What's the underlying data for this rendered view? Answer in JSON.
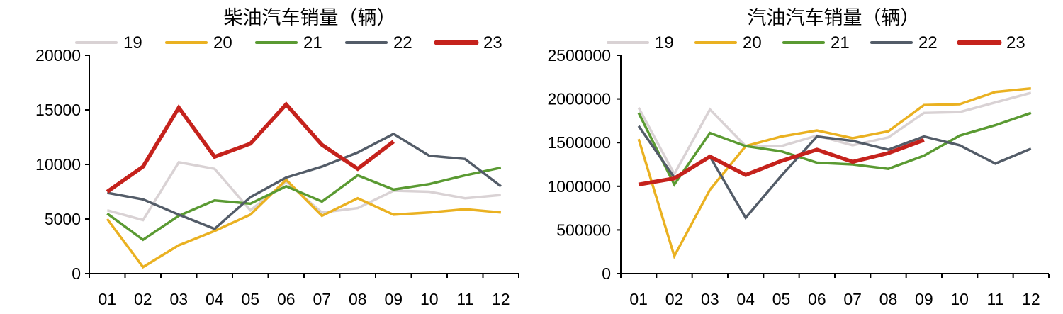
{
  "chart_data": [
    {
      "type": "line",
      "title": "柴油汽车销量（辆）",
      "categories": [
        "01",
        "02",
        "03",
        "04",
        "05",
        "06",
        "07",
        "08",
        "09",
        "10",
        "11",
        "12"
      ],
      "ylim": [
        0,
        20000
      ],
      "yticks": [
        0,
        5000,
        10000,
        15000,
        20000
      ],
      "ytick_labels": [
        "0",
        "5000",
        "10000",
        "15000",
        "20000"
      ],
      "legend_position": "top",
      "series": [
        {
          "name": "19",
          "color": "#d9d2d4",
          "values": [
            5800,
            4900,
            10200,
            9600,
            5800,
            8400,
            5600,
            6000,
            7600,
            7500,
            6900,
            7200
          ]
        },
        {
          "name": "20",
          "color": "#eab121",
          "values": [
            5000,
            600,
            2600,
            3900,
            5400,
            8600,
            5300,
            6900,
            5400,
            5600,
            5900,
            5600
          ]
        },
        {
          "name": "21",
          "color": "#5a9a32",
          "values": [
            5500,
            3100,
            5300,
            6700,
            6400,
            8000,
            6600,
            9000,
            7700,
            8200,
            9000,
            9700
          ]
        },
        {
          "name": "22",
          "color": "#535c68",
          "values": [
            7400,
            6800,
            5400,
            4100,
            7000,
            8800,
            9800,
            11100,
            12800,
            10800,
            10500,
            8000
          ]
        },
        {
          "name": "23",
          "color": "#c5221c",
          "values": [
            7500,
            9800,
            15200,
            10700,
            11900,
            15500,
            11800,
            9600,
            12100,
            null,
            null,
            null
          ]
        }
      ]
    },
    {
      "type": "line",
      "title": "汽油汽车销量（辆）",
      "categories": [
        "01",
        "02",
        "03",
        "04",
        "05",
        "06",
        "07",
        "08",
        "09",
        "10",
        "11",
        "12"
      ],
      "ylim": [
        0,
        2500000
      ],
      "yticks": [
        0,
        500000,
        1000000,
        1500000,
        2000000,
        2500000
      ],
      "ytick_labels": [
        "0",
        "500000",
        "1000000",
        "1500000",
        "2000000",
        "2500000"
      ],
      "legend_position": "top",
      "series": [
        {
          "name": "19",
          "color": "#d9d2d4",
          "values": [
            1900000,
            1140000,
            1880000,
            1460000,
            1460000,
            1580000,
            1470000,
            1560000,
            1840000,
            1850000,
            1960000,
            2070000
          ]
        },
        {
          "name": "20",
          "color": "#eab121",
          "values": [
            1540000,
            200000,
            960000,
            1460000,
            1570000,
            1640000,
            1550000,
            1630000,
            1930000,
            1940000,
            2080000,
            2120000
          ]
        },
        {
          "name": "21",
          "color": "#5a9a32",
          "values": [
            1840000,
            1020000,
            1610000,
            1460000,
            1400000,
            1270000,
            1250000,
            1200000,
            1350000,
            1580000,
            1700000,
            1840000
          ]
        },
        {
          "name": "22",
          "color": "#535c68",
          "values": [
            1690000,
            1100000,
            1340000,
            640000,
            1120000,
            1570000,
            1520000,
            1420000,
            1570000,
            1470000,
            1260000,
            1430000
          ]
        },
        {
          "name": "23",
          "color": "#c5221c",
          "values": [
            1020000,
            1090000,
            1340000,
            1130000,
            1290000,
            1420000,
            1280000,
            1380000,
            1530000,
            null,
            null,
            null
          ]
        }
      ]
    }
  ]
}
